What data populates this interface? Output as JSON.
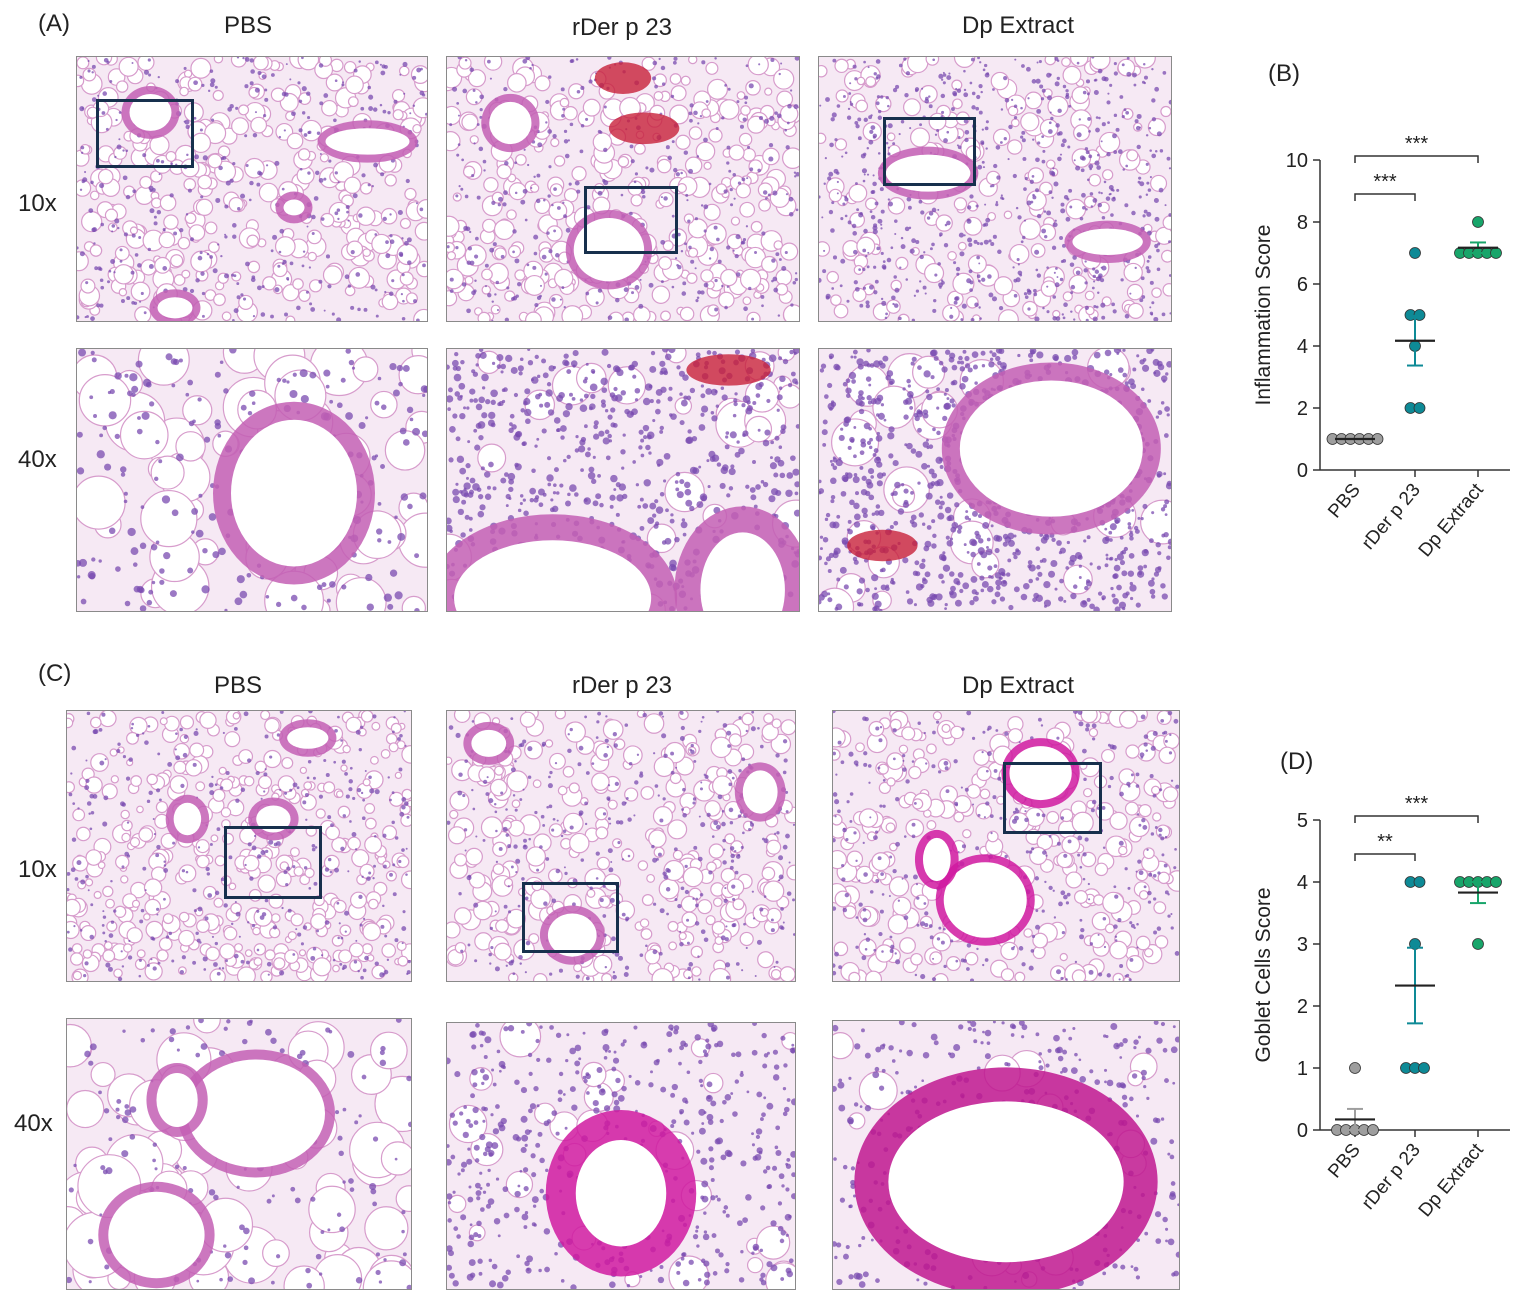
{
  "panels": {
    "A": {
      "letter": "(A)",
      "columns": [
        "PBS",
        "rDer p 23",
        "Dp Extract"
      ],
      "rows": [
        "10x",
        "40x"
      ]
    },
    "B": {
      "letter": "(B)"
    },
    "C": {
      "letter": "(C)",
      "columns": [
        "PBS",
        "rDer p 23",
        "Dp Extract"
      ],
      "rows": [
        "10x",
        "40x"
      ]
    },
    "D": {
      "letter": "(D)"
    }
  },
  "colors": {
    "pbs": "#9e9e9e",
    "rder": "#0e8a96",
    "dp": "#18a56a",
    "tissue_pink": "#e7a9d6",
    "nuclei": "#6a3ea8",
    "mucin": "#d01aa0",
    "blood": "#c8203a",
    "inset_frame": "#17304d"
  },
  "chart_data": [
    {
      "type": "scatter",
      "panel": "(B)",
      "ylabel": "Inflammation Score",
      "categories": [
        "PBS",
        "rDer p 23",
        "Dp Extract"
      ],
      "ylim": [
        0,
        10
      ],
      "yticks": [
        0,
        2,
        4,
        6,
        8,
        10
      ],
      "series": [
        {
          "values": [
            1,
            1,
            1,
            1,
            1,
            1
          ],
          "mean": 1,
          "sem": 0
        },
        {
          "values": [
            7,
            5,
            5,
            4,
            2,
            2
          ],
          "mean": 4.17,
          "sem": 0.8
        },
        {
          "values": [
            8,
            7,
            7,
            7,
            7,
            7
          ],
          "mean": 7.17,
          "sem": 0.17
        }
      ],
      "significance": [
        {
          "from": 0,
          "to": 1,
          "label": "***"
        },
        {
          "from": 0,
          "to": 2,
          "label": "***"
        }
      ]
    },
    {
      "type": "scatter",
      "panel": "(D)",
      "ylabel": "Goblet Cells Score",
      "categories": [
        "PBS",
        "rDer p 23",
        "Dp Extract"
      ],
      "ylim": [
        0,
        5
      ],
      "yticks": [
        0,
        1,
        2,
        3,
        4,
        5
      ],
      "series": [
        {
          "values": [
            1,
            0,
            0,
            0,
            0,
            0
          ],
          "mean": 0.17,
          "sem": 0.17
        },
        {
          "values": [
            4,
            4,
            3,
            1,
            1,
            1
          ],
          "mean": 2.33,
          "sem": 0.61
        },
        {
          "values": [
            4,
            4,
            4,
            4,
            4,
            3
          ],
          "mean": 3.83,
          "sem": 0.17
        }
      ],
      "significance": [
        {
          "from": 0,
          "to": 1,
          "label": "**"
        },
        {
          "from": 0,
          "to": 2,
          "label": "***"
        }
      ]
    }
  ]
}
